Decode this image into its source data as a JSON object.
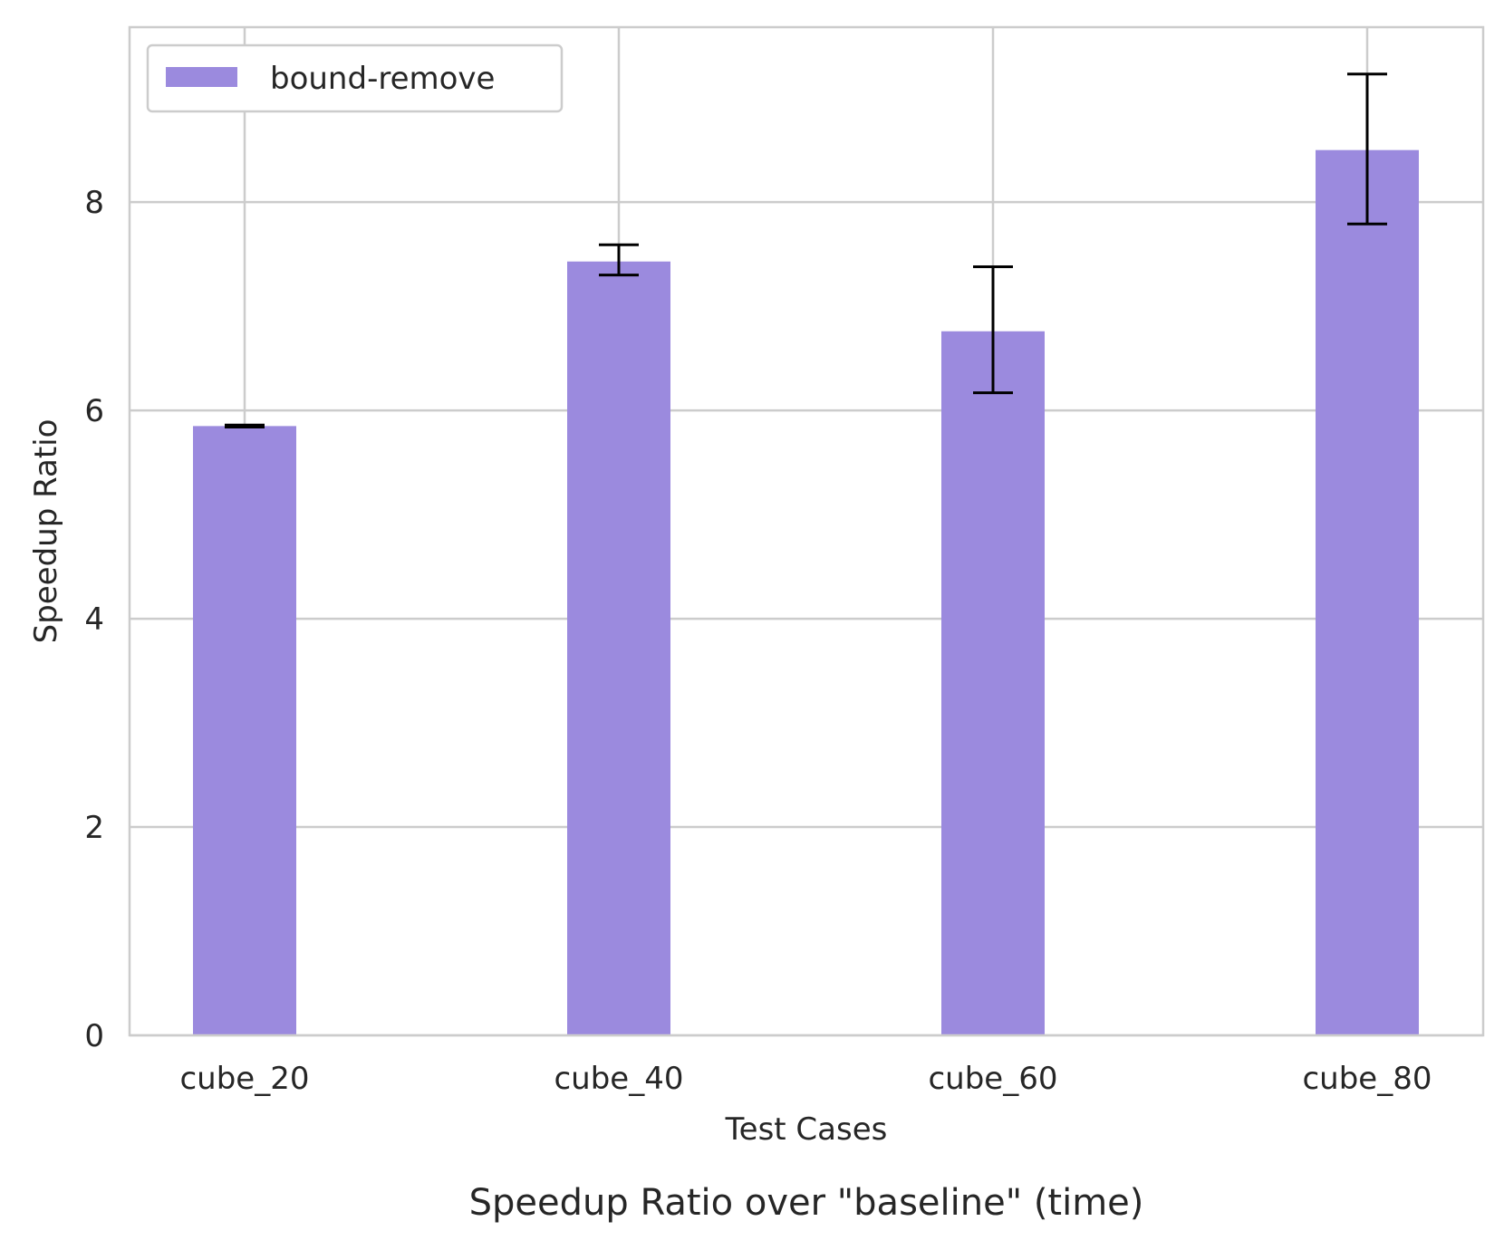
{
  "chart_data": {
    "type": "bar",
    "title": "Speedup Ratio over \"baseline\" (time)",
    "xlabel": "Test Cases",
    "ylabel": "Speedup Ratio",
    "categories": [
      "cube_20",
      "cube_40",
      "cube_60",
      "cube_80"
    ],
    "series": [
      {
        "name": "bound-remove",
        "values": [
          5.85,
          7.43,
          6.76,
          8.5
        ],
        "error_low": [
          5.84,
          7.3,
          6.17,
          7.79
        ],
        "error_high": [
          5.86,
          7.59,
          7.38,
          9.23
        ],
        "color": "#9b8ade"
      }
    ],
    "ylim": [
      0,
      9.68
    ],
    "yticks": [
      0,
      2,
      4,
      6,
      8
    ],
    "grid": true,
    "legend_position": "top-left",
    "colors": {
      "grid": "#cccccc",
      "axes": "#cccccc",
      "errorbar": "#000000",
      "text": "#262626"
    }
  }
}
